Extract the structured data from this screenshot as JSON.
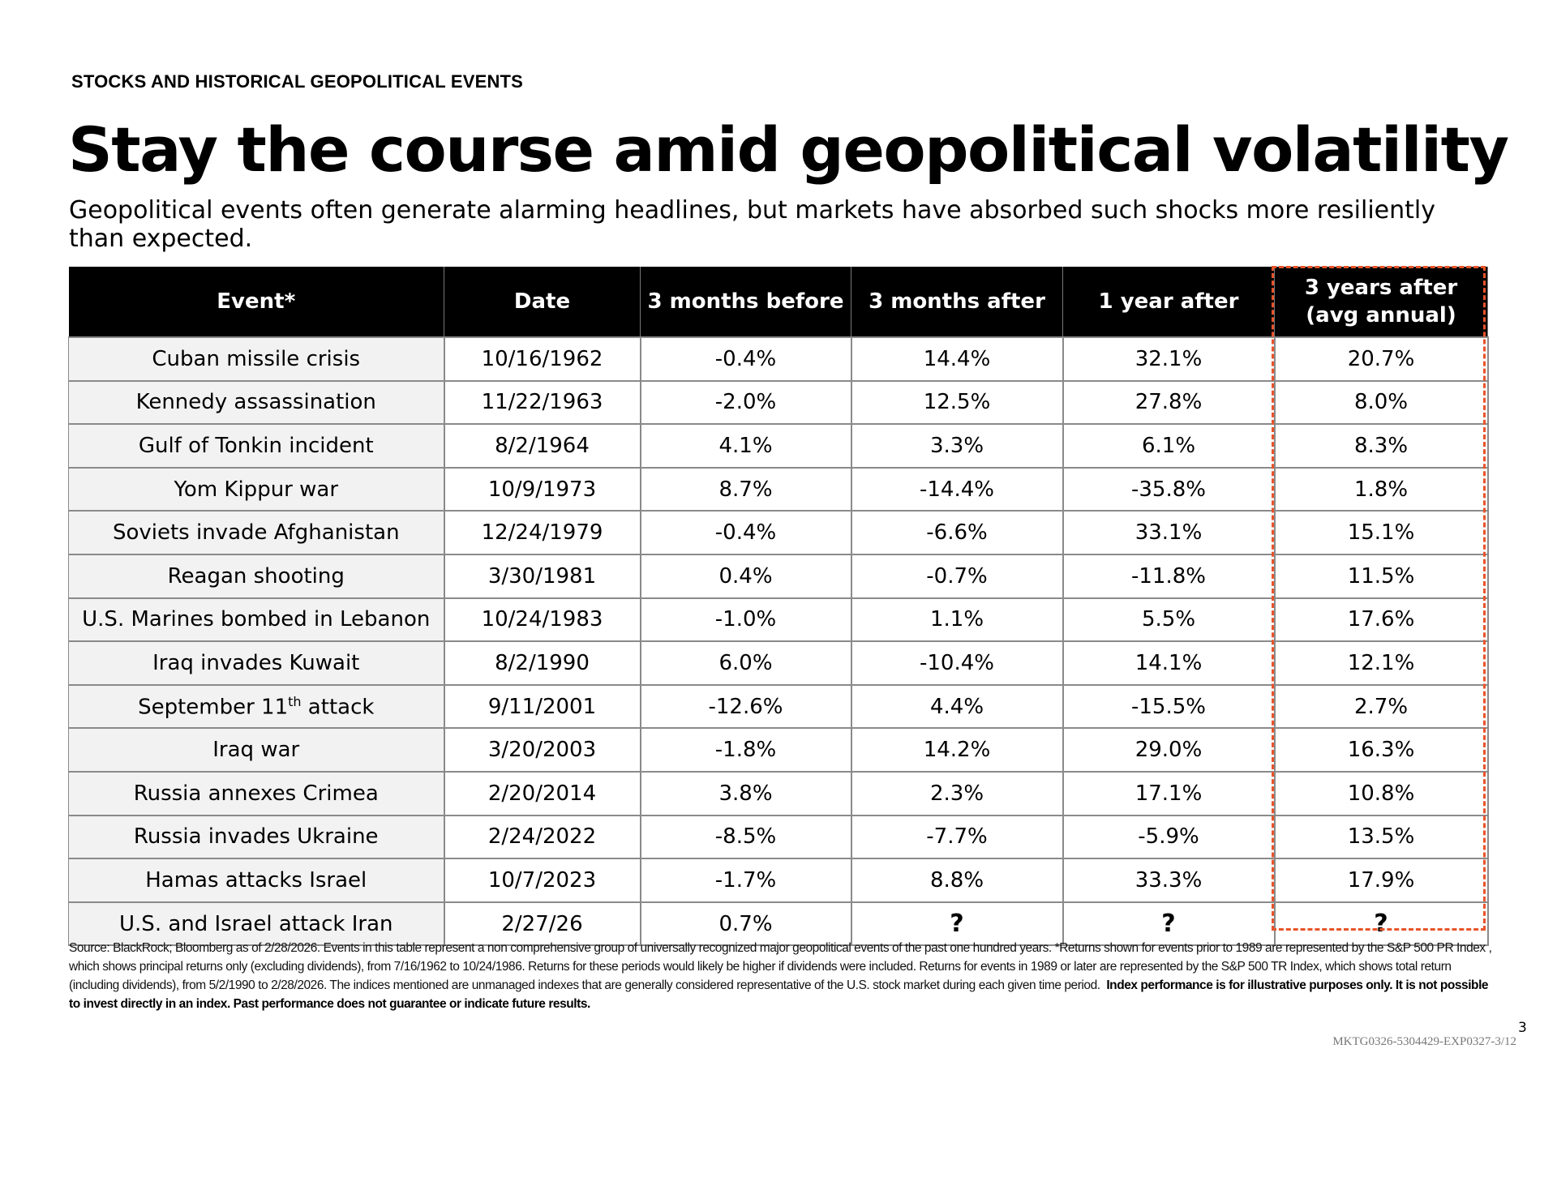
{
  "eyebrow": "STOCKS AND HISTORICAL GEOPOLITICAL EVENTS",
  "title": "Stay the course amid geopolitical volatility",
  "subtitle": "Geopolitical events often generate alarming headlines, but markets have absorbed such shocks more resiliently than expected.",
  "accent_color": "#e8542a",
  "table": {
    "headers": [
      "Event*",
      "Date",
      "3 months before",
      "3 months after",
      "1 year after",
      "3 years after (avg annual)"
    ],
    "rows": [
      {
        "event": "Cuban missile crisis",
        "date": "10/16/1962",
        "before3m": "-0.4%",
        "after3m": "14.4%",
        "after1y": "32.1%",
        "after3y": "20.7%"
      },
      {
        "event": "Kennedy assassination",
        "date": "11/22/1963",
        "before3m": "-2.0%",
        "after3m": "12.5%",
        "after1y": "27.8%",
        "after3y": "8.0%"
      },
      {
        "event": "Gulf of Tonkin incident",
        "date": "8/2/1964",
        "before3m": "4.1%",
        "after3m": "3.3%",
        "after1y": "6.1%",
        "after3y": "8.3%"
      },
      {
        "event": "Yom Kippur war",
        "date": "10/9/1973",
        "before3m": "8.7%",
        "after3m": "-14.4%",
        "after1y": "-35.8%",
        "after3y": "1.8%"
      },
      {
        "event": "Soviets invade Afghanistan",
        "date": "12/24/1979",
        "before3m": "-0.4%",
        "after3m": "-6.6%",
        "after1y": "33.1%",
        "after3y": "15.1%"
      },
      {
        "event": "Reagan shooting",
        "date": "3/30/1981",
        "before3m": "0.4%",
        "after3m": "-0.7%",
        "after1y": "-11.8%",
        "after3y": "11.5%"
      },
      {
        "event": "U.S. Marines bombed in Lebanon",
        "date": "10/24/1983",
        "before3m": "-1.0%",
        "after3m": "1.1%",
        "after1y": "5.5%",
        "after3y": "17.6%"
      },
      {
        "event": "Iraq invades Kuwait",
        "date": "8/2/1990",
        "before3m": "6.0%",
        "after3m": "-10.4%",
        "after1y": "14.1%",
        "after3y": "12.1%"
      },
      {
        "event": "September 11th attack",
        "date": "9/11/2001",
        "before3m": "-12.6%",
        "after3m": "4.4%",
        "after1y": "-15.5%",
        "after3y": "2.7%"
      },
      {
        "event": "Iraq war",
        "date": "3/20/2003",
        "before3m": "-1.8%",
        "after3m": "14.2%",
        "after1y": "29.0%",
        "after3y": "16.3%"
      },
      {
        "event": "Russia annexes Crimea",
        "date": "2/20/2014",
        "before3m": "3.8%",
        "after3m": "2.3%",
        "after1y": "17.1%",
        "after3y": "10.8%"
      },
      {
        "event": "Russia invades Ukraine",
        "date": "2/24/2022",
        "before3m": "-8.5%",
        "after3m": "-7.7%",
        "after1y": "-5.9%",
        "after3y": "13.5%"
      },
      {
        "event": "Hamas attacks Israel",
        "date": "10/7/2023",
        "before3m": "-1.7%",
        "after3m": "8.8%",
        "after1y": "33.3%",
        "after3y": "17.9%"
      },
      {
        "event": "U.S. and Israel attack Iran",
        "date": "2/27/26",
        "before3m": "0.7%",
        "after3m": "?",
        "after1y": "?",
        "after3y": "?"
      }
    ]
  },
  "footnote": {
    "regular": "Source: BlackRock; Bloomberg as of 2/28/2026. Events in this table represent a non comprehensive group of universally recognized major geopolitical events of the past one hundred years. *Returns shown for events prior to 1989 are represented by the S&P 500 PR Index , which shows principal returns only (excluding dividends), from 7/16/1962 to 10/24/1986. Returns for these periods would likely be higher if dividends were included. Returns for events in 1989 or later are represented by the S&P 500 TR Index, which shows total return (including dividends), from 5/2/1990 to 2/28/2026. The indices mentioned are unmanaged indexes that are generally considered representative of the U.S. stock market during each given time period.",
    "bold": "Index performance is for illustrative purposes only. It is not possible to invest directly in an index. Past performance does not guarantee or indicate future results."
  },
  "page_number": "3",
  "doc_code": "MKTG0326-5304429-EXP0327-3/12"
}
